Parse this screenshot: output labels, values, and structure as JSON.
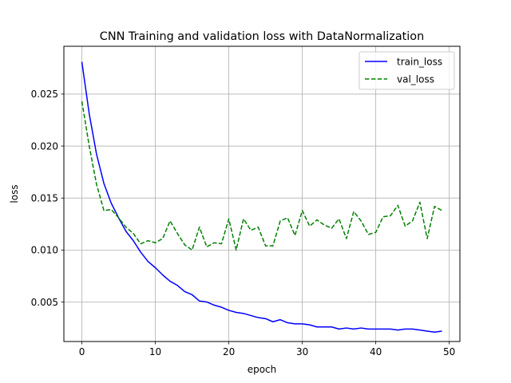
{
  "chart_data": {
    "type": "line",
    "title": "CNN Training and validation loss with DataNormalization",
    "xlabel": "epoch",
    "ylabel": "loss",
    "xlim": [
      -2.45,
      51.45
    ],
    "ylim": [
      0.0012,
      0.0296
    ],
    "xticks": [
      0,
      10,
      20,
      30,
      40,
      50
    ],
    "xtick_labels": [
      "0",
      "10",
      "20",
      "30",
      "40",
      "50"
    ],
    "yticks": [
      0.005,
      0.01,
      0.015,
      0.02,
      0.025
    ],
    "ytick_labels": [
      "0.005",
      "0.010",
      "0.015",
      "0.020",
      "0.025"
    ],
    "grid": true,
    "legend": "top-right",
    "x": [
      0,
      1,
      2,
      3,
      4,
      5,
      6,
      7,
      8,
      9,
      10,
      11,
      12,
      13,
      14,
      15,
      16,
      17,
      18,
      19,
      20,
      21,
      22,
      23,
      24,
      25,
      26,
      27,
      28,
      29,
      30,
      31,
      32,
      33,
      34,
      35,
      36,
      37,
      38,
      39,
      40,
      41,
      42,
      43,
      44,
      45,
      46,
      47,
      48,
      49
    ],
    "series": [
      {
        "name": "train_loss",
        "color": "#0000ff",
        "style": "solid",
        "values": [
          0.0281,
          0.0231,
          0.0192,
          0.0164,
          0.0145,
          0.0131,
          0.0118,
          0.0109,
          0.0098,
          0.0089,
          0.0083,
          0.0076,
          0.007,
          0.0066,
          0.006,
          0.0057,
          0.0051,
          0.005,
          0.0047,
          0.0045,
          0.0042,
          0.004,
          0.0039,
          0.0037,
          0.0035,
          0.0034,
          0.0031,
          0.0033,
          0.003,
          0.0029,
          0.0029,
          0.0028,
          0.0026,
          0.0026,
          0.0026,
          0.0024,
          0.0025,
          0.0024,
          0.0025,
          0.0024,
          0.0024,
          0.0024,
          0.0024,
          0.0023,
          0.0024,
          0.0024,
          0.0023,
          0.0022,
          0.0021,
          0.0022
        ]
      },
      {
        "name": "val_loss",
        "color": "#008000",
        "style": "dashed",
        "values": [
          0.0243,
          0.02,
          0.0163,
          0.0138,
          0.0139,
          0.0131,
          0.0122,
          0.0116,
          0.0106,
          0.0109,
          0.0107,
          0.0111,
          0.0128,
          0.0116,
          0.0105,
          0.01,
          0.0122,
          0.0103,
          0.0107,
          0.0106,
          0.013,
          0.01,
          0.013,
          0.0119,
          0.0122,
          0.0104,
          0.0104,
          0.0128,
          0.0131,
          0.0114,
          0.0138,
          0.0123,
          0.0129,
          0.0124,
          0.0121,
          0.013,
          0.0111,
          0.0137,
          0.0128,
          0.0115,
          0.0117,
          0.0132,
          0.0133,
          0.0143,
          0.0123,
          0.0128,
          0.0146,
          0.0111,
          0.0142,
          0.0138
        ]
      }
    ]
  }
}
